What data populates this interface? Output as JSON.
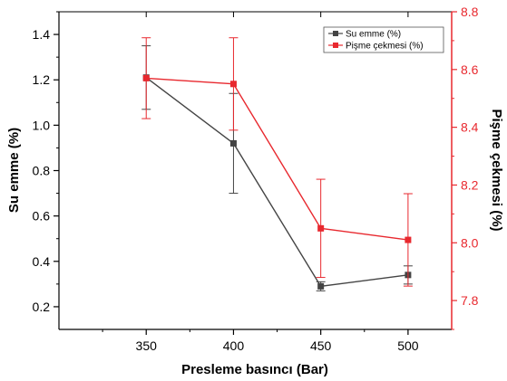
{
  "chart_data": {
    "type": "line",
    "x": [
      350,
      400,
      450,
      500
    ],
    "xlabel": "Presleme basıncı (Bar)",
    "xlim": [
      300,
      525
    ],
    "xticks": [
      350,
      400,
      450,
      500
    ],
    "y_left": {
      "label": "Su emme (%)",
      "lim": [
        0.1,
        1.5
      ],
      "ticks": [
        "0.2",
        "0.4",
        "0.6",
        "0.8",
        "1.0",
        "1.2",
        "1.4"
      ],
      "color": "#000000"
    },
    "y_right": {
      "label": "Pişme çekmesi (%)",
      "lim": [
        7.7,
        8.8
      ],
      "ticks": [
        "7.8",
        "8.0",
        "8.2",
        "8.4",
        "8.6",
        "8.8"
      ],
      "color": "#e8282e"
    },
    "series": [
      {
        "name": "Su emme (%)",
        "axis": "left",
        "color": "#444444",
        "values": [
          1.21,
          0.92,
          0.29,
          0.34
        ],
        "errors": [
          0.14,
          0.22,
          0.02,
          0.04
        ]
      },
      {
        "name": "Pişme çekmesi (%)",
        "axis": "right",
        "color": "#e8282e",
        "values": [
          8.57,
          8.55,
          8.05,
          8.01
        ],
        "errors": [
          0.14,
          0.16,
          0.17,
          0.16
        ]
      }
    ],
    "legend": "top-right",
    "grid": false
  }
}
